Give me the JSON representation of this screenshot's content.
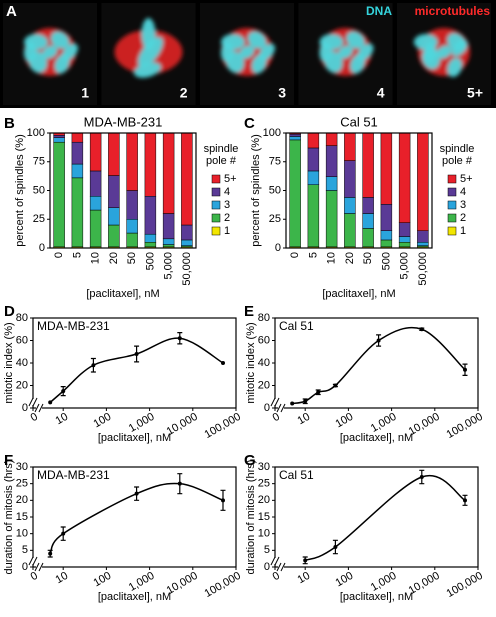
{
  "panel_a": {
    "letter": "A",
    "channels": [
      "DNA",
      "microtubules"
    ],
    "labels": [
      "1",
      "2",
      "3",
      "4",
      "5+"
    ]
  },
  "chart_data": [
    {
      "type": "stacked_bar",
      "panel": "B",
      "title": "MDA-MB-231",
      "x_label": "[paclitaxel], nM",
      "y_label": "percent of spindles (%)",
      "categories": [
        "0",
        "5",
        "10",
        "20",
        "50",
        "500",
        "5,000",
        "50,000"
      ],
      "ylim": [
        0,
        100
      ],
      "yticks": [
        0,
        25,
        50,
        75,
        100
      ],
      "legend_title": "spindle pole #",
      "series": [
        {
          "name": "1",
          "color": "#f2e600",
          "values": [
            1,
            1,
            1,
            1,
            1,
            1,
            1,
            1
          ]
        },
        {
          "name": "2",
          "color": "#3cb54a",
          "values": [
            91,
            60,
            32,
            19,
            12,
            4,
            2,
            1
          ]
        },
        {
          "name": "3",
          "color": "#2aa4dc",
          "values": [
            4,
            12,
            12,
            15,
            12,
            7,
            5,
            5
          ]
        },
        {
          "name": "4",
          "color": "#5a3a96",
          "values": [
            2,
            19,
            22,
            28,
            25,
            33,
            22,
            13
          ]
        },
        {
          "name": "5+",
          "color": "#e8202a",
          "values": [
            2,
            8,
            33,
            37,
            50,
            55,
            70,
            80
          ]
        }
      ]
    },
    {
      "type": "stacked_bar",
      "panel": "C",
      "title": "Cal 51",
      "x_label": "[paclitaxel], nM",
      "y_label": "percent of spindles (%)",
      "categories": [
        "0",
        "5",
        "10",
        "20",
        "50",
        "500",
        "5,000",
        "50,000"
      ],
      "ylim": [
        0,
        100
      ],
      "yticks": [
        0,
        25,
        50,
        75,
        100
      ],
      "legend_title": "spindle pole #",
      "series": [
        {
          "name": "1",
          "color": "#f2e600",
          "values": [
            1,
            1,
            1,
            1,
            1,
            1,
            1,
            1
          ]
        },
        {
          "name": "2",
          "color": "#3cb54a",
          "values": [
            93,
            54,
            49,
            29,
            16,
            6,
            4,
            1
          ]
        },
        {
          "name": "3",
          "color": "#2aa4dc",
          "values": [
            3,
            12,
            12,
            14,
            13,
            8,
            5,
            3
          ]
        },
        {
          "name": "4",
          "color": "#5a3a96",
          "values": [
            2,
            20,
            27,
            32,
            14,
            23,
            12,
            10
          ]
        },
        {
          "name": "5+",
          "color": "#e8202a",
          "values": [
            1,
            13,
            11,
            24,
            56,
            62,
            78,
            85
          ]
        }
      ]
    },
    {
      "type": "line",
      "panel": "D",
      "title": "MDA-MB-231",
      "x_label": "[paclitaxel], nM",
      "y_label": "mitotic index (%)",
      "xscale": "log",
      "color": "#000000",
      "x": [
        5,
        10,
        50,
        500,
        5000,
        50000
      ],
      "values": [
        5,
        15,
        38,
        48,
        62,
        40
      ],
      "errors": [
        null,
        4,
        6,
        7,
        5,
        null
      ],
      "xlim": [
        2,
        100000
      ],
      "xticks": [
        0,
        10,
        100,
        {
          "value": 1000,
          "label": "1,000"
        },
        {
          "value": 10000,
          "label": "10,000"
        },
        {
          "value": 100000,
          "label": "100,000"
        }
      ],
      "ylim": [
        0,
        80
      ],
      "yticks": [
        0,
        20,
        40,
        60,
        80
      ]
    },
    {
      "type": "line",
      "panel": "E",
      "title": "Cal 51",
      "x_label": "[paclitaxel], nM",
      "y_label": "mitotic index (%)",
      "xscale": "log",
      "color": "#000000",
      "x": [
        5,
        10,
        20,
        50,
        500,
        5000,
        50000
      ],
      "values": [
        4,
        6,
        14,
        20,
        60,
        70,
        34
      ],
      "errors": [
        null,
        2,
        2,
        1,
        5,
        1,
        5
      ],
      "xlim": [
        2,
        100000
      ],
      "xticks": [
        0,
        10,
        100,
        {
          "value": 1000,
          "label": "1,000"
        },
        {
          "value": 10000,
          "label": "10,000"
        },
        {
          "value": 100000,
          "label": "100,000"
        }
      ],
      "ylim": [
        0,
        80
      ],
      "yticks": [
        0,
        20,
        40,
        60,
        80
      ]
    },
    {
      "type": "line",
      "panel": "F",
      "title": "MDA-MB-231",
      "x_label": "[paclitaxel], nM",
      "y_label": "duration of mitosis (hrs)",
      "xscale": "log",
      "color": "#000000",
      "x": [
        5,
        10,
        500,
        5000,
        50000
      ],
      "values": [
        4,
        10,
        22,
        25,
        20
      ],
      "errors": [
        1,
        2,
        2,
        3,
        3
      ],
      "xlim": [
        2,
        100000
      ],
      "xticks": [
        0,
        10,
        100,
        {
          "value": 1000,
          "label": "1,000"
        },
        {
          "value": 10000,
          "label": "10,000"
        },
        {
          "value": 100000,
          "label": "100,000"
        }
      ],
      "ylim": [
        0,
        30
      ],
      "yticks": [
        0,
        5,
        10,
        15,
        20,
        25,
        30
      ]
    },
    {
      "type": "line",
      "panel": "G",
      "title": "Cal 51",
      "x_label": "[paclitaxel], nM",
      "y_label": "duration of mitosis (hrs)",
      "xscale": "log",
      "color": "#000000",
      "x": [
        10,
        50,
        5000,
        50000
      ],
      "values": [
        2,
        6,
        27,
        20
      ],
      "errors": [
        1,
        2,
        2,
        1.5
      ],
      "xlim": [
        2,
        100000
      ],
      "xticks": [
        0,
        10,
        100,
        {
          "value": 1000,
          "label": "1,000"
        },
        {
          "value": 10000,
          "label": "10,000"
        },
        {
          "value": 100000,
          "label": "100,000"
        }
      ],
      "ylim": [
        0,
        30
      ],
      "yticks": [
        0,
        5,
        10,
        15,
        20,
        25,
        30
      ]
    }
  ]
}
